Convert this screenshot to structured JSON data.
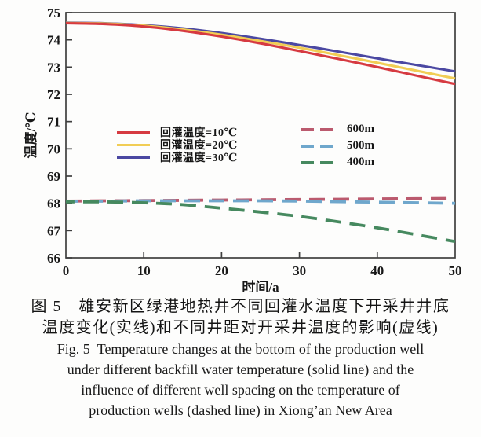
{
  "chart_data": {
    "type": "line",
    "title": "",
    "xlabel": "时间/a",
    "ylabel": "温度/℃",
    "xlim": [
      0,
      50
    ],
    "ylim": [
      66,
      75
    ],
    "xticks": [
      0,
      10,
      20,
      30,
      40,
      50
    ],
    "yticks": [
      66,
      67,
      68,
      69,
      70,
      71,
      72,
      73,
      74,
      75
    ],
    "grid": false,
    "legend_position": "inside-middle",
    "x": [
      0,
      5,
      10,
      15,
      20,
      25,
      30,
      35,
      40,
      45,
      50
    ],
    "series": [
      {
        "name": "回灌温度=10℃",
        "group": "backfill-temperature",
        "style": "solid",
        "color": "#d63a41",
        "values": [
          74.61,
          74.58,
          74.49,
          74.33,
          74.12,
          73.87,
          73.59,
          73.3,
          73.0,
          72.69,
          72.38
        ]
      },
      {
        "name": "回灌温度=20℃",
        "group": "backfill-temperature",
        "style": "solid",
        "color": "#f1cd55",
        "values": [
          74.62,
          74.6,
          74.52,
          74.38,
          74.19,
          73.96,
          73.71,
          73.44,
          73.16,
          72.87,
          72.58
        ]
      },
      {
        "name": "回灌温度=30℃",
        "group": "backfill-temperature",
        "style": "solid",
        "color": "#4b48a2",
        "values": [
          74.63,
          74.61,
          74.54,
          74.42,
          74.25,
          74.04,
          73.81,
          73.57,
          73.32,
          73.08,
          72.84
        ]
      },
      {
        "name": "600m",
        "group": "well-spacing",
        "style": "dashed",
        "color": "#bb5a6e",
        "values": [
          68.08,
          68.09,
          68.1,
          68.11,
          68.12,
          68.13,
          68.14,
          68.15,
          68.16,
          68.17,
          68.18
        ]
      },
      {
        "name": "500m",
        "group": "well-spacing",
        "style": "dashed",
        "color": "#6fa7cc",
        "values": [
          68.08,
          68.08,
          68.09,
          68.09,
          68.09,
          68.09,
          68.08,
          68.06,
          68.04,
          68.02,
          68.0
        ]
      },
      {
        "name": "400m",
        "group": "well-spacing",
        "style": "dashed",
        "color": "#46895f",
        "values": [
          68.05,
          68.05,
          68.02,
          67.95,
          67.82,
          67.68,
          67.52,
          67.32,
          67.1,
          66.85,
          66.6
        ]
      }
    ]
  },
  "caption": {
    "zh": [
      "图 5　雄安新区绿港地热井不同回灌水温度下开采井井底",
      "温度变化(实线)和不同井距对开采井温度的影响(虚线)"
    ],
    "en": [
      "Fig. 5  Temperature changes at the bottom of the production well",
      "under different backfill water temperature (solid line) and the",
      "influence of different well spacing on the temperature of",
      "production wells (dashed line) in Xiong’an New Area"
    ]
  }
}
